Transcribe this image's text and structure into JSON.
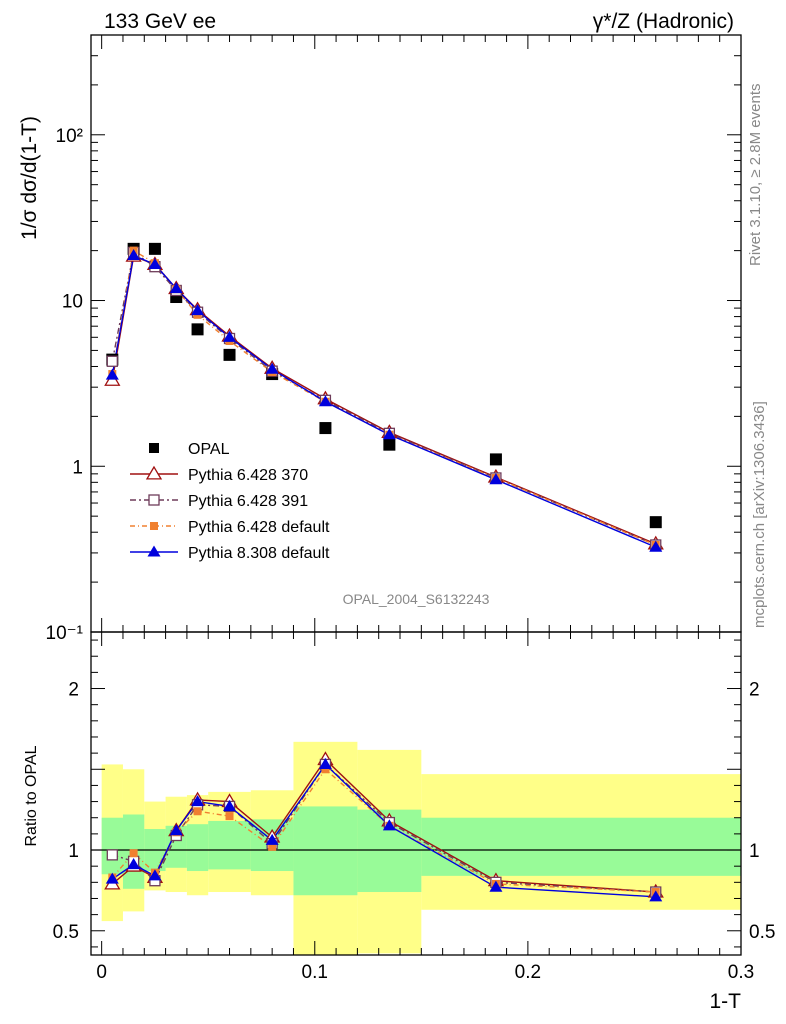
{
  "header": {
    "left": "133 GeV ee",
    "right": "γ*/Z (Hadronic)"
  },
  "side_labels": {
    "rivet": "Rivet 3.1.10, ≥ 2.8M events",
    "mcplots": "mcplots.cern.ch [arXiv:1306.3436]"
  },
  "watermark": "OPAL_2004_S6132243",
  "colors": {
    "data": "#000000",
    "p370": "#a01010",
    "p391": "#6e3c5a",
    "pdef": "#f08030",
    "p8": "#0000dd",
    "band_inner": "#98fb98",
    "band_outer": "#ffff88"
  },
  "chart_data": [
    {
      "type": "scatter",
      "panel": "main",
      "ylabel": "1/σ dσ/d(1-T)",
      "ylog": true,
      "xlim": [
        -0.005,
        0.3
      ],
      "ylim": [
        0.1,
        400
      ],
      "y_ticks": [
        {
          "v": 0.1,
          "label": "10⁻¹"
        },
        {
          "v": 1,
          "label": "1"
        },
        {
          "v": 10,
          "label": "10"
        },
        {
          "v": 100,
          "label": "10²"
        }
      ],
      "legend_position": "lower-left",
      "x": [
        0.005,
        0.015,
        0.025,
        0.035,
        0.045,
        0.06,
        0.08,
        0.105,
        0.135,
        0.185,
        0.26
      ],
      "series": [
        {
          "name": "OPAL",
          "key": "data",
          "marker": "square-filled",
          "values": [
            4.4,
            20.5,
            20.5,
            10.5,
            6.7,
            4.7,
            3.6,
            1.7,
            1.35,
            1.1,
            0.46
          ]
        },
        {
          "name": "Pythia 6.428 370",
          "key": "p370",
          "marker": "triangle-open",
          "dash": "",
          "values": [
            3.3,
            18.5,
            16.5,
            11.8,
            8.8,
            6.1,
            3.9,
            2.55,
            1.6,
            0.86,
            0.34
          ]
        },
        {
          "name": "Pythia 6.428 391",
          "key": "p391",
          "marker": "square-open",
          "dash": "6,3,2,3",
          "values": [
            4.3,
            19.5,
            16.0,
            11.5,
            8.5,
            5.9,
            3.75,
            2.5,
            1.58,
            0.85,
            0.335
          ]
        },
        {
          "name": "Pythia 6.428 default",
          "key": "pdef",
          "marker": "square-filled-small",
          "dash": "5,3,1,3",
          "values": [
            3.6,
            20.0,
            16.8,
            11.7,
            8.2,
            5.7,
            3.7,
            2.45,
            1.55,
            0.85,
            0.335
          ]
        },
        {
          "name": "Pythia 8.308 default",
          "key": "p8",
          "marker": "triangle-filled",
          "dash": "",
          "values": [
            3.55,
            18.7,
            16.5,
            11.8,
            8.7,
            6.0,
            3.85,
            2.45,
            1.55,
            0.83,
            0.325
          ]
        }
      ]
    },
    {
      "type": "line",
      "panel": "ratio",
      "xlabel": "1-T",
      "ylabel": "Ratio to OPAL",
      "xlim": [
        -0.005,
        0.3
      ],
      "ylim": [
        0.35,
        2.35
      ],
      "x_ticks": [
        0,
        0.1,
        0.2,
        0.3
      ],
      "x_tick_labels": [
        "0",
        "0.1",
        "0.2",
        "0.3"
      ],
      "y_ticks": [
        0.5,
        1,
        2
      ],
      "y_tick_labels": [
        "0.5",
        "1",
        "2"
      ],
      "reference_line": 1,
      "band_edges": [
        0.0,
        0.01,
        0.02,
        0.03,
        0.04,
        0.05,
        0.07,
        0.09,
        0.12,
        0.15,
        0.3
      ],
      "inner_band": [
        [
          0.85,
          1.2
        ],
        [
          0.76,
          1.22
        ],
        [
          0.87,
          1.13
        ],
        [
          0.89,
          1.15
        ],
        [
          0.87,
          1.16
        ],
        [
          0.88,
          1.18
        ],
        [
          0.87,
          1.19
        ],
        [
          0.72,
          1.27
        ],
        [
          0.74,
          1.25
        ],
        [
          0.84,
          1.2
        ]
      ],
      "outer_band": [
        [
          0.56,
          1.53
        ],
        [
          0.62,
          1.5
        ],
        [
          0.75,
          1.3
        ],
        [
          0.74,
          1.33
        ],
        [
          0.72,
          1.34
        ],
        [
          0.74,
          1.36
        ],
        [
          0.72,
          1.37
        ],
        [
          0.35,
          1.67
        ],
        [
          0.36,
          1.62
        ],
        [
          0.63,
          1.47
        ]
      ],
      "x": [
        0.005,
        0.015,
        0.025,
        0.035,
        0.045,
        0.06,
        0.08,
        0.105,
        0.135,
        0.185,
        0.26
      ],
      "series": [
        {
          "name": "Pythia 6.428 370",
          "key": "p370",
          "marker": "triangle-open",
          "dash": "",
          "values": [
            0.79,
            0.9,
            0.83,
            1.12,
            1.31,
            1.3,
            1.08,
            1.56,
            1.18,
            0.81,
            0.74
          ]
        },
        {
          "name": "Pythia 6.428 391",
          "key": "p391",
          "marker": "square-open",
          "dash": "6,3,2,3",
          "values": [
            0.97,
            0.93,
            0.81,
            1.09,
            1.28,
            1.27,
            1.04,
            1.53,
            1.17,
            0.8,
            0.74
          ]
        },
        {
          "name": "Pythia 6.428 default",
          "key": "pdef",
          "marker": "square-filled-small",
          "dash": "5,3,1,3",
          "values": [
            0.83,
            0.98,
            0.86,
            1.11,
            1.24,
            1.21,
            1.02,
            1.5,
            1.15,
            0.79,
            0.74
          ]
        },
        {
          "name": "Pythia 8.308 default",
          "key": "p8",
          "marker": "triangle-filled",
          "dash": "",
          "values": [
            0.82,
            0.91,
            0.84,
            1.12,
            1.3,
            1.27,
            1.06,
            1.53,
            1.15,
            0.77,
            0.71
          ]
        }
      ]
    }
  ]
}
